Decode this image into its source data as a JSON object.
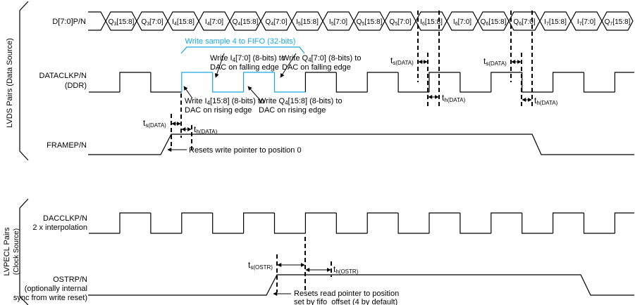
{
  "groups": {
    "data_source": "LVDS Pairs (Data Source)",
    "clock_source_line1": "LVPECL Pairs",
    "clock_source_line2": "(Clock Source)"
  },
  "signals": {
    "data_bus": "D[7:0]P/N",
    "dataclk_line1": "DATACLKP/N",
    "dataclk_line2": "(DDR)",
    "frame": "FRAMEP/N",
    "dacclk_line1": "DACCLKP/N",
    "dacclk_line2": "2 x interpolation",
    "ostr_line1": "OSTRP/N",
    "ostr_line2": "(optionally internal",
    "ostr_line3": "sync from write reset)"
  },
  "bus_cells": [
    {
      "sig": "Q",
      "sub": "3",
      "bits": "[15:8]"
    },
    {
      "sig": "Q",
      "sub": "3",
      "bits": "[7:0]"
    },
    {
      "sig": "I",
      "sub": "4",
      "bits": "[15:8]"
    },
    {
      "sig": "I",
      "sub": "4",
      "bits": "[7:0]"
    },
    {
      "sig": "Q",
      "sub": "4",
      "bits": "[15:8]"
    },
    {
      "sig": "Q",
      "sub": "4",
      "bits": "[7:0]"
    },
    {
      "sig": "I",
      "sub": "5",
      "bits": "[15:8]"
    },
    {
      "sig": "I",
      "sub": "5",
      "bits": "[7:0]"
    },
    {
      "sig": "Q",
      "sub": "5",
      "bits": "[15:8]"
    },
    {
      "sig": "Q",
      "sub": "5",
      "bits": "[7:0]"
    },
    {
      "sig": "I",
      "sub": "6",
      "bits": "[15:8]"
    },
    {
      "sig": "I",
      "sub": "6",
      "bits": "[7:0]"
    },
    {
      "sig": "Q",
      "sub": "6",
      "bits": "[15:8]"
    },
    {
      "sig": "Q",
      "sub": "6",
      "bits": "[7:0]"
    },
    {
      "sig": "I",
      "sub": "7",
      "bits": "[15:8]"
    },
    {
      "sig": "I",
      "sub": "7",
      "bits": "[7:0]"
    },
    {
      "sig": "Q",
      "sub": "7",
      "bits": "[15:8]"
    }
  ],
  "annotations": {
    "fifo_write": "Write sample 4 to FIFO (32-bits)",
    "i4_low": {
      "pre": "Write I",
      "sub": "4",
      "post": "[7:0] (8-bits) to",
      "line2": "DAC on falling edge"
    },
    "q4_low": {
      "pre": "Write Q",
      "sub": "4",
      "post": "[7:0] (8-bits) to",
      "line2": "DAC on falling edge"
    },
    "i4_high": {
      "pre": "Write I",
      "sub": "4",
      "post": "[15:8] (8-bits) to",
      "line2": "DAC on rising edge"
    },
    "q4_high": {
      "pre": "Write Q",
      "sub": "4",
      "post": "[15:8] (8-bits) to",
      "line2": "DAC on rising edge"
    },
    "reset_write": "Resets write pointer to position 0",
    "reset_read_line1": "Resets read pointer to position",
    "reset_read_line2": "set by fifo_offset (4 by default)"
  },
  "timing": {
    "ts_data": {
      "main": "t",
      "sub": "s(DATA)"
    },
    "th_data": {
      "main": "t",
      "sub": "h(DATA)"
    },
    "ts_ostr": {
      "main": "t",
      "sub": "s(OSTR)"
    },
    "th_ostr": {
      "main": "t",
      "sub": "h(OSTR)"
    }
  },
  "colors": {
    "line": "#000000",
    "highlight": "#1aa7e0"
  }
}
